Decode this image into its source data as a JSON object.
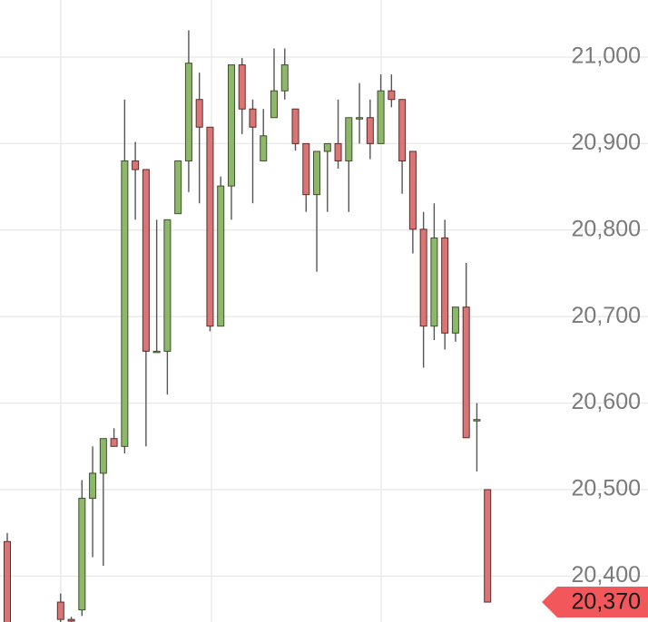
{
  "chart_data": {
    "type": "candlestick",
    "open": [
      20440,
      null,
      null,
      null,
      null,
      20370,
      20350,
      20361,
      20490,
      20519,
      20559,
      20550,
      20880,
      20870,
      20660,
      20660,
      20819,
      20880,
      20951,
      20919,
      20689,
      20851,
      20991,
      20940,
      20880,
      20930,
      20961,
      20940,
      20900,
      20841,
      20891,
      20900,
      20880,
      20930,
      20930,
      20900,
      20961,
      20951,
      20891,
      20801,
      20689,
      20791,
      20681,
      20711,
      20581,
      20500
    ],
    "high": [
      20450,
      null,
      null,
      null,
      null,
      20380,
      20353,
      20511,
      20550,
      20559,
      20571,
      20951,
      20902,
      20870,
      20812,
      20812,
      20880,
      21031,
      20982,
      20919,
      20862,
      20991,
      20999,
      20951,
      20940,
      21010,
      21010,
      20940,
      20900,
      20891,
      20900,
      20951,
      20930,
      20970,
      20951,
      20980,
      20980,
      20951,
      20891,
      20821,
      20831,
      20812,
      20711,
      20762,
      20600,
      20500
    ],
    "low": [
      20345,
      null,
      null,
      null,
      null,
      20345,
      20345,
      20354,
      20422,
      20412,
      20550,
      20542,
      20812,
      20550,
      20659,
      20610,
      20819,
      20844,
      20831,
      20683,
      20689,
      20812,
      20911,
      20831,
      20880,
      20930,
      20951,
      20892,
      20821,
      20752,
      20821,
      20871,
      20821,
      20900,
      20882,
      20900,
      20942,
      20842,
      20773,
      20641,
      20673,
      20662,
      20671,
      20560,
      20521,
      20370
    ],
    "close": [
      20345,
      null,
      null,
      null,
      null,
      20350,
      20348,
      20490,
      20519,
      20559,
      20550,
      20880,
      20870,
      20660,
      20660,
      20812,
      20880,
      20993,
      20919,
      20689,
      20851,
      20991,
      20940,
      20919,
      20909,
      20961,
      20991,
      20900,
      20841,
      20891,
      20900,
      20880,
      20930,
      20930,
      20900,
      20961,
      20951,
      20880,
      20801,
      20689,
      20791,
      20681,
      20711,
      20560,
      20581,
      20370
    ],
    "up_color": "#8db86a",
    "down_color": "#d97575",
    "ylim": [
      20347,
      21066
    ],
    "yticks": [
      {
        "value": 20400,
        "label": "20,400"
      },
      {
        "value": 20500,
        "label": "20,500"
      },
      {
        "value": 20600,
        "label": "20,600"
      },
      {
        "value": 20700,
        "label": "20,700"
      },
      {
        "value": 20800,
        "label": "20,800"
      },
      {
        "value": 20900,
        "label": "20,900"
      },
      {
        "value": 21000,
        "label": "21,000"
      }
    ],
    "grid": true,
    "last_price": {
      "value": 20370,
      "label": "20,370"
    },
    "last_price_color": "#f2585b"
  }
}
